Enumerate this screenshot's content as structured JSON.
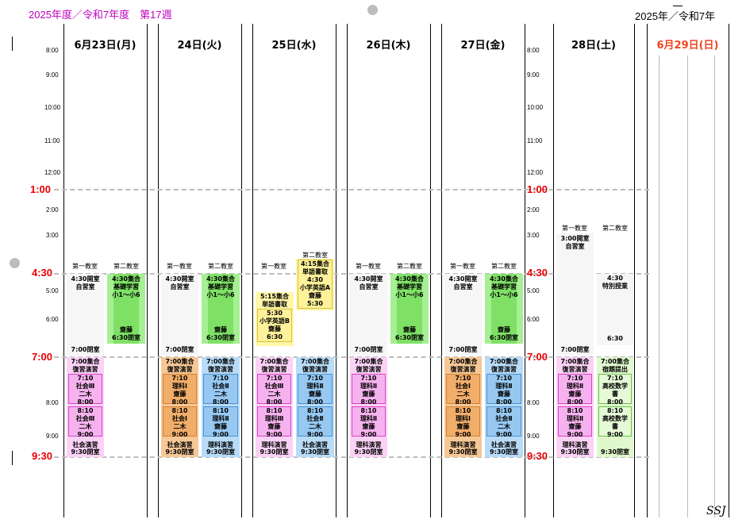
{
  "header": {
    "left": "2025年度／令和7年度　第17週",
    "right": "2025年／令和7年"
  },
  "days": [
    {
      "label": "6月23日(月)",
      "sunday": false
    },
    {
      "label": "24日(火)",
      "sunday": false
    },
    {
      "label": "25日(水)",
      "sunday": false
    },
    {
      "label": "26日(木)",
      "sunday": false
    },
    {
      "label": "27日(金)",
      "sunday": false
    },
    {
      "label": "28日(土)",
      "sunday": false
    },
    {
      "label": "6月29日(日)",
      "sunday": true
    }
  ],
  "times": {
    "t8am": "8:00",
    "t9am": "9:00",
    "t10": "10:00",
    "t11": "11:00",
    "t12": "12:00",
    "t100": "1:00",
    "t200": "2:00",
    "t300": "3:00",
    "t430": "4:30",
    "t500": "5:00",
    "t600": "6:00",
    "t700": "7:00",
    "t800": "8:00",
    "t900": "9:00",
    "t930": "9:30"
  },
  "rooms": {
    "first": "第一教室",
    "second": "第二教室"
  },
  "labels": {
    "kaishitsu430": "4:30開室",
    "jishushitsu": "自習室",
    "heishitsu700": "7:00閉室",
    "g430shugo": "4:30集合",
    "kiso": "基礎学習",
    "sho16": "小1～小6",
    "saito": "齋藤",
    "heishitsu630": "6:30閉室",
    "g700shugo": "7:00集合",
    "fukushu": "復習演習",
    "t710": "7:10",
    "t800b": "8:00",
    "t810": "8:10",
    "t900b": "9:00",
    "shakai3": "社会Ⅲ",
    "shakai2": "社会Ⅱ",
    "shakai1": "社会Ⅰ",
    "rika1": "理科Ⅰ",
    "rika2": "理科Ⅱ",
    "rika3": "理科Ⅲ",
    "niki": "二木",
    "shakai_enshu": "社会演習",
    "rika_enshu": "理科演習",
    "heishitsu930": "9:30閉室",
    "w515": "5:15集合",
    "wtango": "単語書取",
    "w530": "5:30",
    "eigoB": "小学英語B",
    "w630": "6:30",
    "w415": "4:15集合",
    "eigoA": "小学英語A",
    "w430": "4:30",
    "sat300": "3:00開室",
    "tokubetsu": "特別授業",
    "shukudai": "宿題提出",
    "kosu1": "高校数学",
    "kosu2": "書"
  },
  "signature": "SSJ"
}
